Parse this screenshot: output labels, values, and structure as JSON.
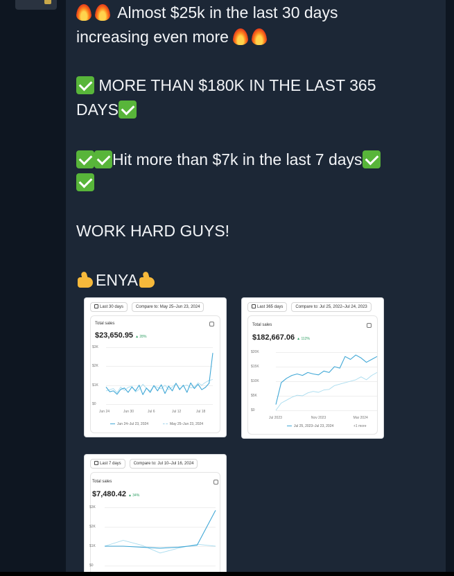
{
  "message": {
    "line1": "Almost $25k in the last 30 days",
    "line2": "increasing even more",
    "line3": "MORE THAN $180K IN THE LAST 365",
    "line4": "DAYS",
    "line5": "Hit more than $7k in the last 7 days",
    "line7": "WORK HARD GUYS!",
    "signature": "ENYA"
  },
  "icons": {
    "fire": "fire-emoji",
    "check": "check-mark-button-emoji",
    "thumb": "thumbs-up-emoji"
  },
  "colors": {
    "bubble": "#1c2736",
    "background": "#0e1621",
    "series_primary": "#3fa7d6",
    "series_compare": "#a9dcef",
    "positive": "#2e9e62"
  },
  "cards": [
    {
      "period_label": "Last 30 days",
      "compare_label": "Compare to: May 25–Jun 23, 2024",
      "metric_label": "Total sales",
      "metric_value": "$23,650.95",
      "change": "▲ 28%",
      "legend_primary": "Jun 24–Jul 23, 2024",
      "legend_compare": "May 25–Jun 23, 2024"
    },
    {
      "period_label": "Last 365 days",
      "compare_label": "Compare to: Jul 25, 2022–Jul 24, 2023",
      "metric_label": "Total sales",
      "metric_value": "$182,667.06",
      "change": "▲ 112%",
      "legend_primary": "Jul 25, 2023–Jul 23, 2024",
      "legend_more": "+1 more"
    },
    {
      "period_label": "Last 7 days",
      "compare_label": "Compare to: Jul 10–Jul 16, 2024",
      "metric_label": "Total sales",
      "metric_value": "$7,480.42",
      "change": "▲ 34%"
    }
  ],
  "chart_data": [
    {
      "type": "line",
      "yticks": [
        "$3K",
        "$2K",
        "$1K",
        "$0"
      ],
      "xticks": [
        "Jun 24",
        "Jun 30",
        "Jul 6",
        "Jul 12",
        "Jul 18"
      ],
      "ylim": [
        0,
        3000
      ],
      "series": [
        {
          "name": "Jun 24–Jul 23, 2024",
          "values": [
            900,
            650,
            700,
            520,
            780,
            850,
            620,
            900,
            700,
            1000,
            500,
            850,
            620,
            980,
            700,
            1020,
            560,
            950,
            700,
            1100,
            760,
            1000,
            620,
            1120,
            820,
            1050,
            760,
            880,
            1100,
            2700
          ]
        },
        {
          "name": "May 25–Jun 23, 2024",
          "values": [
            700,
            760,
            820,
            600,
            900,
            720,
            880,
            950,
            640,
            780,
            1050,
            820,
            700,
            960,
            880,
            800,
            1000,
            760,
            900,
            1080,
            820,
            950,
            1010,
            860,
            900,
            1120,
            1000,
            1150,
            1250,
            1300
          ]
        }
      ]
    },
    {
      "type": "line",
      "yticks": [
        "$20K",
        "$15K",
        "$10K",
        "$5K",
        "$0"
      ],
      "xticks": [
        "Jul 2023",
        "Nov 2023",
        "Mar 2024"
      ],
      "ylim": [
        0,
        20000
      ],
      "series": [
        {
          "name": "Jul 25, 2023–Jul 23, 2024",
          "values": [
            2000,
            9500,
            11000,
            12000,
            12500,
            12000,
            13000,
            12500,
            12200,
            13500,
            13000,
            15000,
            14500,
            18500,
            17500,
            19000,
            18000,
            16500,
            17500,
            18500
          ]
        },
        {
          "name": "",
          "values": [
            0,
            2500,
            3500,
            4500,
            5200,
            5000,
            6000,
            6500,
            6200,
            7000,
            7200,
            8500,
            9000,
            9500,
            10000,
            10500,
            11500,
            10500,
            12000,
            13000
          ]
        }
      ]
    },
    {
      "type": "line",
      "yticks": [
        "$3K",
        "$2K",
        "$1K",
        "$0"
      ],
      "ylim": [
        0,
        3000
      ],
      "series": [
        {
          "name": "",
          "values": [
            1000,
            1000,
            950,
            900,
            950,
            1050,
            2850
          ]
        },
        {
          "name": "",
          "values": [
            1000,
            1300,
            1050,
            650,
            900,
            1100,
            1000
          ]
        }
      ]
    }
  ]
}
